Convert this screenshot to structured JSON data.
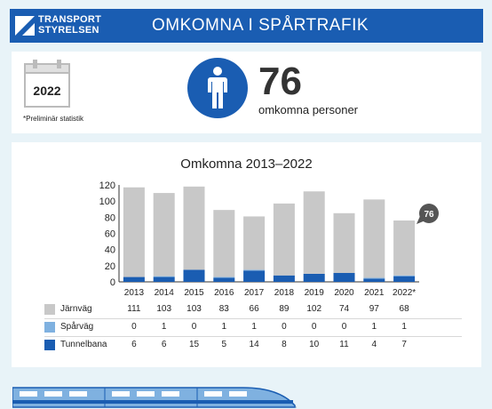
{
  "header": {
    "logo_line1": "TRANSPORT",
    "logo_line2": "STYRELSEN",
    "title": "OMKOMNA I SPÅRTRAFIK"
  },
  "summary": {
    "year": "2022",
    "note": "*Preliminär statistik",
    "total": "76",
    "total_label": "omkomna personer",
    "icon": "person-icon"
  },
  "colors": {
    "brand": "#1a5db2",
    "jarnvag": "#c8c8c8",
    "sparvag": "#7fb1e0",
    "tunnelbana": "#1a5db2",
    "background": "#e8f3f8"
  },
  "chart_data": {
    "type": "bar",
    "stacked": true,
    "title": "Omkomna 2013–2022",
    "categories": [
      "2013",
      "2014",
      "2015",
      "2016",
      "2017",
      "2018",
      "2019",
      "2020",
      "2021",
      "2022*"
    ],
    "ylim": [
      0,
      120
    ],
    "yticks": [
      0,
      20,
      40,
      60,
      80,
      100,
      120
    ],
    "grid": false,
    "series": [
      {
        "name": "Tunnelbana",
        "values": [
          6,
          6,
          15,
          5,
          14,
          8,
          10,
          11,
          4,
          7
        ]
      },
      {
        "name": "Spårväg",
        "values": [
          0,
          1,
          0,
          1,
          1,
          0,
          0,
          0,
          1,
          1
        ]
      },
      {
        "name": "Järnväg",
        "values": [
          111,
          103,
          103,
          83,
          66,
          89,
          102,
          74,
          97,
          68
        ]
      }
    ],
    "annotation": "76"
  }
}
